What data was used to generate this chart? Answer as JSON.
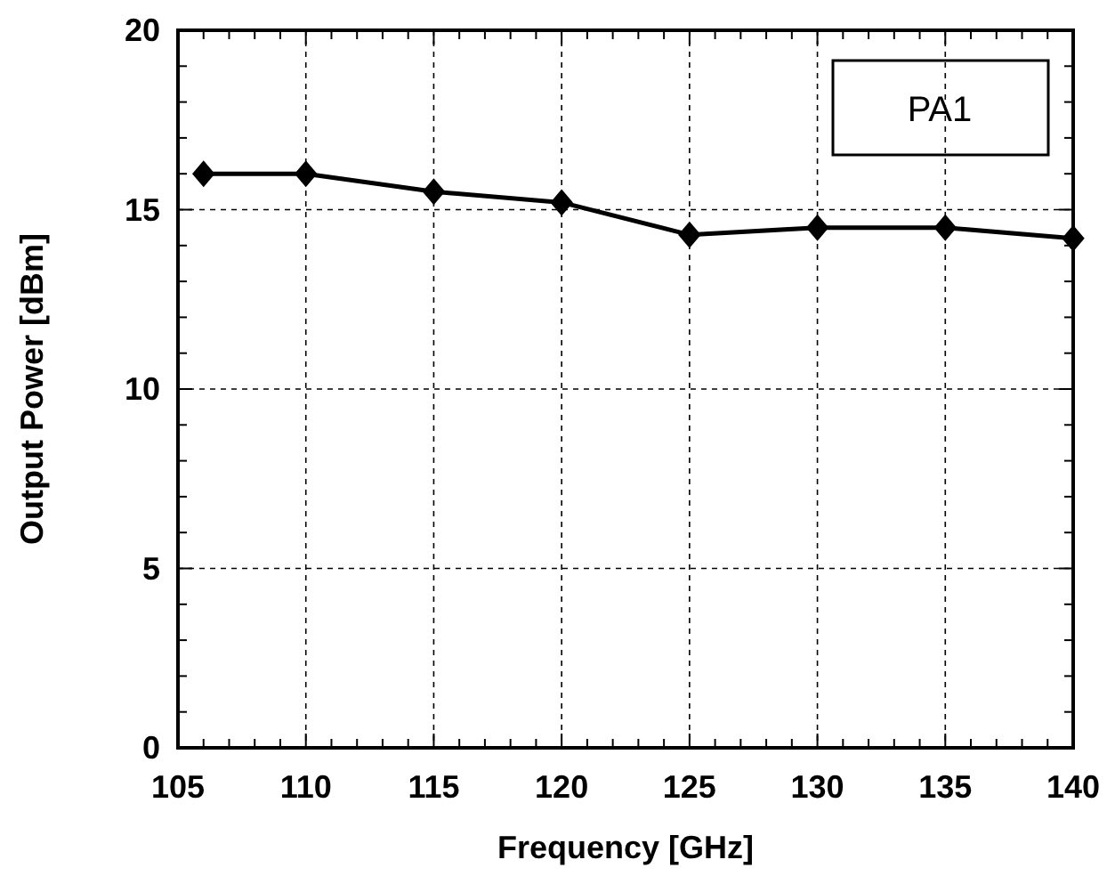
{
  "chart_data": {
    "type": "line",
    "xlabel": "Frequency [GHz]",
    "ylabel": "Output Power [dBm]",
    "x": [
      106,
      110,
      115,
      120,
      125,
      130,
      135,
      140
    ],
    "series": [
      {
        "color": "#000000",
        "values": [
          16.0,
          16.0,
          15.5,
          15.2,
          14.3,
          14.5,
          14.5,
          14.2
        ]
      }
    ],
    "xlim": [
      105,
      140
    ],
    "ylim": [
      0,
      20
    ],
    "xticks": [
      105,
      {
        "value": 106,
        "label": null
      },
      {
        "value": 107,
        "label": null
      },
      {
        "value": 108,
        "label": null
      },
      {
        "value": 109,
        "label": null
      },
      110,
      {
        "value": 111,
        "label": null
      },
      {
        "value": 112,
        "label": null
      },
      {
        "value": 113,
        "label": null
      },
      {
        "value": 114,
        "label": null
      },
      115,
      {
        "value": 116,
        "label": null
      },
      {
        "value": 117,
        "label": null
      },
      {
        "value": 118,
        "label": null
      },
      {
        "value": 119,
        "label": null
      },
      120,
      {
        "value": 121,
        "label": null
      },
      {
        "value": 122,
        "label": null
      },
      {
        "value": 123,
        "label": null
      },
      {
        "value": 124,
        "label": null
      },
      125,
      {
        "value": 126,
        "label": null
      },
      {
        "value": 127,
        "label": null
      },
      {
        "value": 128,
        "label": null
      },
      {
        "value": 129,
        "label": null
      },
      130,
      {
        "value": 131,
        "label": null
      },
      {
        "value": 132,
        "label": null
      },
      {
        "value": 133,
        "label": null
      },
      {
        "value": 134,
        "label": null
      },
      135,
      {
        "value": 136,
        "label": null
      },
      {
        "value": 137,
        "label": null
      },
      {
        "value": 138,
        "label": null
      },
      {
        "value": 139,
        "label": null
      },
      140
    ],
    "yticks": [
      0,
      {
        "value": 1,
        "label": null
      },
      {
        "value": 2,
        "label": null
      },
      {
        "value": 3,
        "label": null
      },
      {
        "value": 4,
        "label": null
      },
      5,
      {
        "value": 6,
        "label": null
      },
      {
        "value": 7,
        "label": null
      },
      {
        "value": 8,
        "label": null
      },
      {
        "value": 9,
        "label": null
      },
      10,
      {
        "value": 11,
        "label": null
      },
      {
        "value": 12,
        "label": null
      },
      {
        "value": 13,
        "label": null
      },
      {
        "value": 14,
        "label": null
      },
      15,
      {
        "value": 16,
        "label": null
      },
      {
        "value": 17,
        "label": null
      },
      {
        "value": 18,
        "label": null
      },
      {
        "value": 19,
        "label": null
      },
      20
    ],
    "grid": true,
    "marker": "diamond",
    "line_style": "solid",
    "annotations": [
      "PA1"
    ]
  }
}
